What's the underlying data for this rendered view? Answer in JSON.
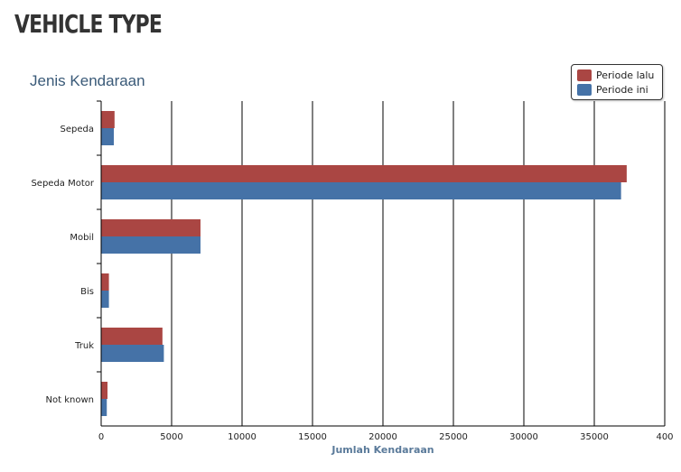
{
  "page": {
    "heading": "VEHICLE TYPE"
  },
  "chart_data": {
    "type": "bar",
    "orientation": "horizontal",
    "title": "Jenis Kendaraan",
    "xlabel": "Jumlah Kendaraan",
    "ylabel": "",
    "categories": [
      "Sepeda",
      "Sepeda Motor",
      "Mobil",
      "Bis",
      "Truk",
      "Not known"
    ],
    "series": [
      {
        "name": "Periode lalu",
        "color": "#aa4643",
        "values": [
          950,
          37300,
          7050,
          550,
          4350,
          450
        ]
      },
      {
        "name": "Periode ini",
        "color": "#4572a7",
        "values": [
          900,
          36900,
          7050,
          550,
          4450,
          400
        ]
      }
    ],
    "xlim": [
      0,
      40000
    ],
    "xticks": [
      "0",
      "5000",
      "10000",
      "15000",
      "20000",
      "25000",
      "30000",
      "35000",
      "400"
    ],
    "grid": true,
    "legend_position": "top-right"
  }
}
